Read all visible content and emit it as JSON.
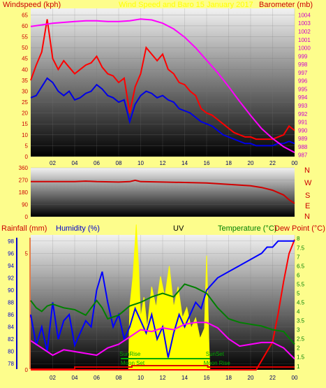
{
  "colors": {
    "background": "#fdfd8c",
    "wind_gust": "#ff0000",
    "wind_avg": "#0000e6",
    "barometer": "#ff00ff",
    "direction": "#d00000",
    "rainfall": "#ff0000",
    "humidity": "#0000ff",
    "uv": "#ffff00",
    "temperature": "#008000",
    "dew_point": "#ff00ff",
    "sun_line": "#00aa00",
    "moon_line": "#dd0000",
    "title_faint": "#ffff00"
  },
  "labels": {
    "windspeed": "Windspeed (kph)",
    "title": "Wind Speed and Baro 15 January 2017",
    "barometer": "Barometer (mb)",
    "rainfall": "Rainfall (mm)",
    "humidity": "Humidity (%)",
    "uv": "UV",
    "temperature": "Temperature (°C)",
    "dewpoint": "Dew Point (°C)",
    "sunrise": "SunRise",
    "sunset": "SunSet",
    "moonset": "Moon Set",
    "moonrise": "Moon Rise",
    "compass": [
      "N",
      "W",
      "S",
      "E",
      "N"
    ]
  },
  "chart_data": [
    {
      "type": "line",
      "name": "wind-baro",
      "x_ticks": [
        "02",
        "04",
        "06",
        "08",
        "10",
        "12",
        "14",
        "16",
        "18",
        "20",
        "22",
        "00"
      ],
      "x_range": [
        0,
        24
      ],
      "y_left_ticks": [
        0,
        5,
        10,
        15,
        20,
        25,
        30,
        35,
        40,
        45,
        50,
        55,
        60,
        65
      ],
      "y_left_range": [
        0,
        68
      ],
      "y_right_ticks": [
        987,
        988,
        989,
        990,
        991,
        992,
        993,
        994,
        995,
        996,
        997,
        998,
        999,
        1000,
        1001,
        1002,
        1003,
        1004
      ],
      "y_right_range": [
        986.8,
        1004.8
      ],
      "series": [
        {
          "name": "Windspeed",
          "axis": "left",
          "color": "#0000e6",
          "x": [
            0,
            0.5,
            1,
            1.5,
            2,
            2.5,
            3,
            3.5,
            4,
            4.5,
            5,
            5.5,
            6,
            6.5,
            7,
            7.5,
            8,
            8.5,
            9,
            9.5,
            10,
            10.5,
            11,
            11.5,
            12,
            12.5,
            13,
            13.5,
            14,
            14.5,
            15,
            15.5,
            16,
            16.5,
            17,
            17.5,
            18,
            18.5,
            19,
            19.5,
            20,
            20.5,
            21,
            21.5,
            22,
            22.5,
            23,
            23.5,
            24
          ],
          "y": [
            27,
            28,
            32,
            36,
            34,
            30,
            28,
            30,
            26,
            27,
            29,
            30,
            33,
            31,
            28,
            27,
            25,
            26,
            16,
            24,
            28,
            30,
            29,
            27,
            28,
            26,
            25,
            22,
            21,
            20,
            18,
            16,
            15,
            14,
            12,
            10,
            9,
            8,
            7,
            6,
            6,
            5,
            5,
            5,
            5,
            6,
            6,
            7,
            6
          ]
        },
        {
          "name": "Gust",
          "axis": "left",
          "color": "#ff0000",
          "x": [
            0,
            0.5,
            1,
            1.5,
            2,
            2.5,
            3,
            3.5,
            4,
            4.5,
            5,
            5.5,
            6,
            6.5,
            7,
            7.5,
            8,
            8.5,
            9,
            9.5,
            10,
            10.5,
            11,
            11.5,
            12,
            12.5,
            13,
            13.5,
            14,
            14.5,
            15,
            15.5,
            16,
            16.5,
            17,
            17.5,
            18,
            18.5,
            19,
            19.5,
            20,
            20.5,
            21,
            21.5,
            22,
            22.5,
            23,
            23.5,
            24
          ],
          "y": [
            35,
            42,
            48,
            63,
            45,
            40,
            44,
            41,
            38,
            40,
            42,
            43,
            46,
            41,
            38,
            37,
            34,
            36,
            20,
            32,
            38,
            50,
            47,
            44,
            47,
            40,
            38,
            34,
            33,
            30,
            28,
            22,
            20,
            19,
            17,
            15,
            13,
            11,
            10,
            9,
            9,
            8,
            8,
            8,
            8,
            9,
            10,
            14,
            12
          ]
        },
        {
          "name": "Barometer",
          "axis": "right",
          "color": "#ff00ff",
          "x": [
            0,
            1,
            2,
            3,
            4,
            5,
            6,
            7,
            8,
            9,
            10,
            11,
            12,
            13,
            14,
            15,
            16,
            17,
            18,
            19,
            20,
            21,
            22,
            23,
            24
          ],
          "y": [
            1002.6,
            1002.8,
            1003.0,
            1003.1,
            1003.2,
            1003.3,
            1003.3,
            1003.2,
            1003.2,
            1003.3,
            1003.5,
            1003.4,
            1003.0,
            1002.3,
            1001.3,
            1000.0,
            998.5,
            997.0,
            995.3,
            993.5,
            991.8,
            990.2,
            989.0,
            988.0,
            987.3
          ]
        }
      ]
    },
    {
      "type": "line",
      "name": "direction",
      "x_range": [
        0,
        24
      ],
      "y_ticks": [
        0,
        90,
        180,
        270,
        360
      ],
      "y_range": [
        0,
        360
      ],
      "series": [
        {
          "name": "Direction",
          "color": "#d00000",
          "x": [
            0,
            2,
            4,
            5,
            6,
            8,
            9,
            9.5,
            10,
            12,
            14,
            16,
            18,
            20,
            21,
            22,
            23,
            23.5,
            24
          ],
          "y": [
            258,
            258,
            258,
            262,
            258,
            255,
            258,
            268,
            258,
            255,
            252,
            248,
            238,
            228,
            215,
            195,
            160,
            125,
            98
          ]
        }
      ]
    },
    {
      "type": "line",
      "name": "rain-humidity-uv-temp",
      "x_range": [
        0,
        24
      ],
      "rain_ticks": [
        0,
        5
      ],
      "rain_range": [
        0,
        5.8
      ],
      "humidity_ticks": [
        78,
        80,
        82,
        84,
        86,
        88,
        90,
        92,
        94,
        96,
        98
      ],
      "humidity_range": [
        77,
        99
      ],
      "uv_range": [
        0,
        13
      ],
      "temp_ticks": [
        1,
        1.5,
        2,
        2.5,
        3,
        3.5,
        4,
        4.5,
        5,
        5.5,
        6,
        6.5,
        7,
        7.5,
        8
      ],
      "temp_range": [
        0.8,
        8.2
      ],
      "series": [
        {
          "name": "Rainfall",
          "color": "#ff0000",
          "x": [
            0,
            20.5,
            21,
            22,
            22.5,
            23,
            23.5,
            24
          ],
          "y": [
            0,
            0,
            0.4,
            1.2,
            2.4,
            3.8,
            5.0,
            5.6
          ]
        },
        {
          "name": "Humidity",
          "color": "#0000ff",
          "x": [
            0,
            0.5,
            1,
            1.5,
            2,
            2.5,
            3,
            3.5,
            4,
            4.5,
            5,
            5.5,
            6,
            6.5,
            7,
            7.5,
            8,
            8.5,
            9,
            9.5,
            10,
            10.5,
            11,
            11.5,
            12,
            12.5,
            13,
            13.5,
            14,
            14.5,
            15,
            15.5,
            16,
            17,
            18,
            19,
            20,
            21,
            21.5,
            22,
            22.5,
            23,
            23.5,
            24
          ],
          "y": [
            86,
            81,
            84,
            80,
            88,
            82,
            85,
            86,
            81,
            83,
            85,
            84,
            90,
            93,
            88,
            84,
            86,
            82,
            84,
            87,
            85,
            83,
            86,
            82,
            84,
            79,
            83,
            86,
            84,
            86,
            88,
            87,
            90,
            92,
            93,
            94,
            95,
            96,
            97,
            97,
            98,
            98,
            98,
            98
          ]
        },
        {
          "name": "UV",
          "color": "#ffff00",
          "fill": true,
          "x": [
            8.9,
            9,
            9.3,
            9.6,
            9.8,
            10,
            10.3,
            10.6,
            11,
            11.4,
            11.8,
            12.2,
            12.6,
            13,
            13.4,
            13.8,
            14.2,
            14.6,
            15,
            15.4,
            15.8,
            16,
            16.2,
            16.3
          ],
          "y": [
            0,
            6,
            9,
            14,
            10,
            5,
            7,
            4,
            8,
            6,
            9,
            7,
            10,
            6,
            8,
            5,
            6,
            4,
            5,
            3,
            4,
            11,
            3,
            0
          ]
        },
        {
          "name": "Temperature",
          "color": "#008000",
          "x": [
            0,
            0.5,
            1,
            1.5,
            2,
            3,
            4,
            5,
            6,
            6.5,
            7,
            8,
            9,
            10,
            11,
            12,
            13,
            14,
            15,
            16,
            17,
            18,
            19,
            20,
            21,
            22,
            23,
            24
          ],
          "y": [
            4.6,
            4.2,
            4.0,
            4.3,
            4.4,
            4.2,
            4.1,
            3.8,
            4.6,
            4.2,
            3.6,
            3.8,
            4.3,
            4.5,
            4.8,
            5.0,
            4.8,
            5.5,
            5.3,
            5.0,
            4.2,
            3.6,
            3.4,
            3.3,
            3.2,
            3.0,
            2.9,
            2.2
          ]
        },
        {
          "name": "Dew Point",
          "color": "#ff00ff",
          "x": [
            0,
            1,
            2,
            3,
            4,
            5,
            6,
            7,
            8,
            9,
            10,
            11,
            12,
            13,
            14,
            15,
            16,
            17,
            18,
            19,
            20,
            21,
            22,
            23,
            24
          ],
          "y": [
            2.4,
            2.0,
            1.6,
            1.9,
            1.8,
            1.7,
            1.6,
            2.0,
            2.2,
            2.6,
            3.0,
            2.9,
            3.1,
            3.0,
            3.3,
            3.4,
            3.4,
            3.1,
            2.5,
            2.1,
            2.2,
            2.3,
            2.3,
            2.0,
            1.4
          ]
        }
      ],
      "sun_events": {
        "sunrise": 8.2,
        "sunset": 16.3
      },
      "moon_events": {
        "moonset": 9.2,
        "moonrise": 16.1
      }
    }
  ]
}
